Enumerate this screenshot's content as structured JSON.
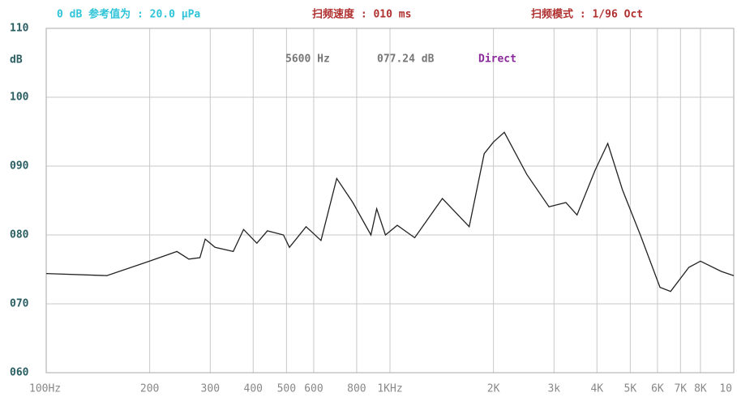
{
  "chart_data": {
    "type": "line",
    "header": [
      "0 dB 参考值为 : 20.0 μPa",
      "扫频速度 : 010 ms",
      "扫频模式 : 1/96 Oct"
    ],
    "header_colors": [
      "#2fc4d8",
      "#b03030",
      "#b03030"
    ],
    "readout": [
      "5600 Hz",
      "077.24 dB",
      "Direct"
    ],
    "readout_colors": [
      "#777777",
      "#777777",
      "#8a2a9a"
    ],
    "y_unit": "dB",
    "x": [
      100,
      150,
      200,
      240,
      260,
      280,
      290,
      310,
      350,
      375,
      410,
      440,
      490,
      510,
      570,
      630,
      700,
      780,
      880,
      915,
      970,
      1050,
      1180,
      1420,
      1700,
      1880,
      2000,
      2150,
      2500,
      2900,
      3250,
      3500,
      3950,
      4300,
      4750,
      5350,
      6100,
      6550,
      7400,
      8000,
      9200,
      10000
    ],
    "series": [
      {
        "name": "Direct",
        "color": "#222222",
        "values": [
          74.4,
          74.1,
          76.2,
          77.6,
          76.5,
          76.7,
          79.4,
          78.2,
          77.6,
          80.8,
          78.8,
          80.6,
          80,
          78.2,
          81.2,
          79.2,
          88.2,
          84.7,
          80,
          83.8,
          80,
          81.4,
          79.6,
          85.3,
          81.2,
          91.8,
          93.5,
          94.9,
          88.8,
          84.1,
          84.7,
          82.9,
          89.4,
          93.3,
          86.5,
          80,
          72.4,
          71.8,
          75.3,
          76.2,
          74.7,
          74.1
        ]
      }
    ],
    "xlog": true,
    "xlim": [
      100,
      10000
    ],
    "xticks": [
      {
        "value": 100,
        "label": "100Hz"
      },
      200,
      300,
      400,
      500,
      600,
      800,
      {
        "value": 1000,
        "label": "1KHz"
      },
      {
        "value": 2000,
        "label": "2K"
      },
      {
        "value": 3000,
        "label": "3k"
      },
      {
        "value": 4000,
        "label": "4K"
      },
      {
        "value": 5000,
        "label": "5K"
      },
      {
        "value": 6000,
        "label": "6K"
      },
      {
        "value": 7000,
        "label": "7K"
      },
      {
        "value": 8000,
        "label": "8K"
      },
      {
        "value": 10000,
        "label": "10"
      }
    ],
    "ylim": [
      60,
      110
    ],
    "yticks": [
      {
        "value": 60,
        "label": "060"
      },
      {
        "value": 70,
        "label": "070"
      },
      {
        "value": 80,
        "label": "080"
      },
      {
        "value": 90,
        "label": "090"
      },
      100,
      110
    ],
    "grid": true
  }
}
